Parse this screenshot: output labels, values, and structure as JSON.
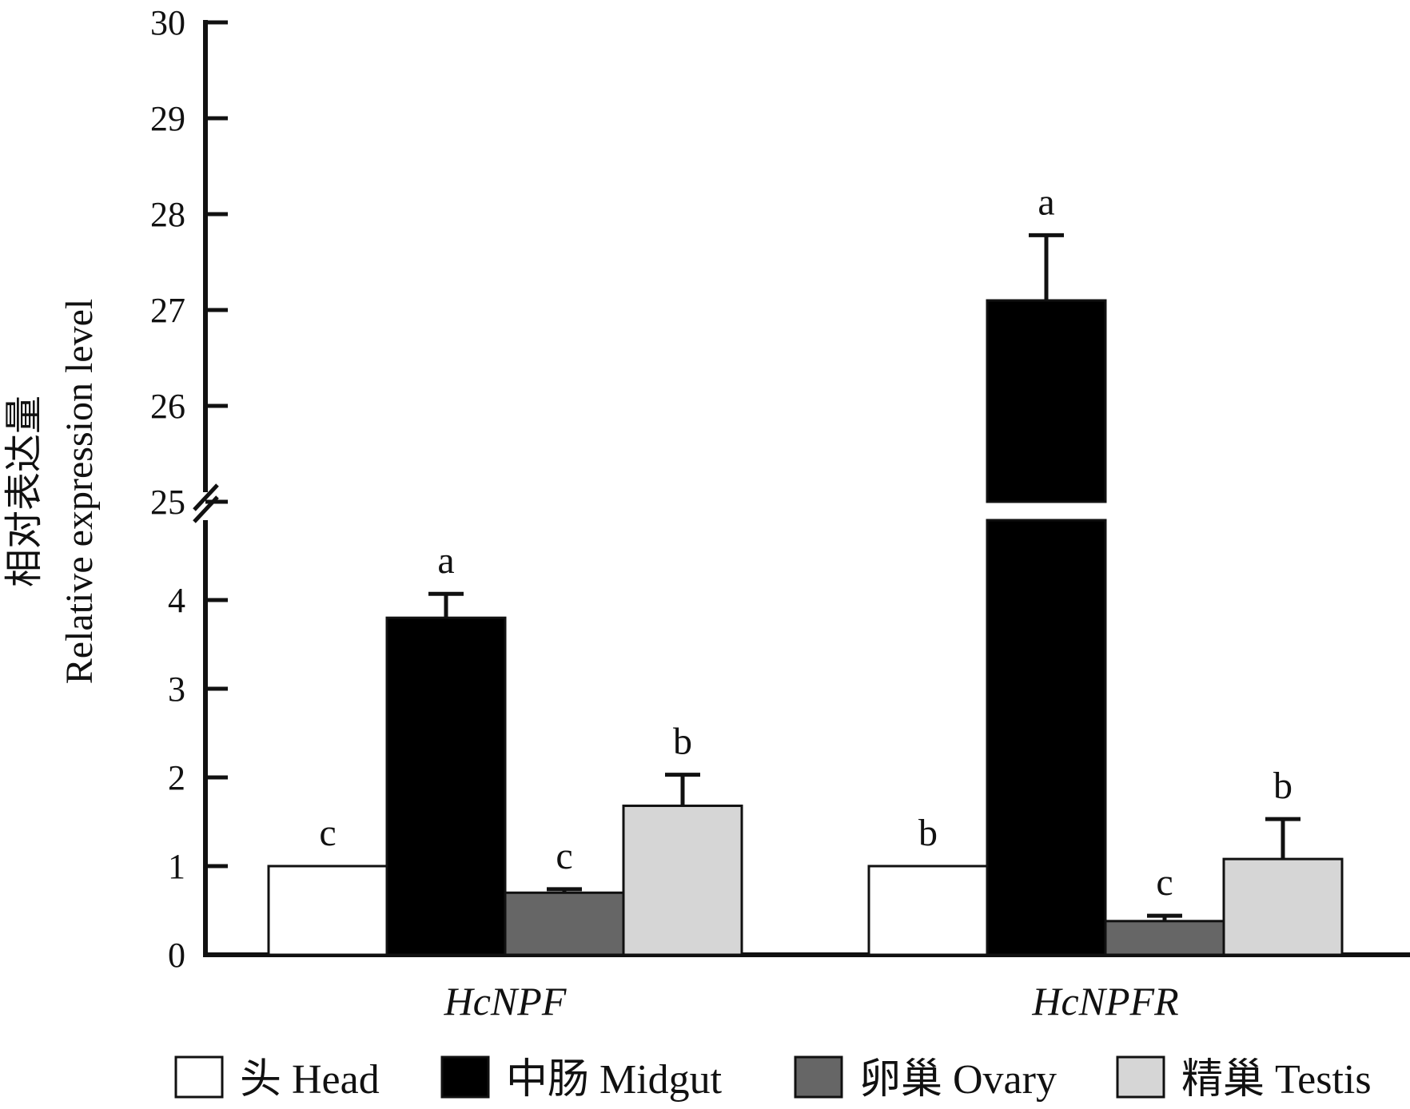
{
  "chart_data": {
    "type": "bar",
    "ylabel_cn": "相对表达量",
    "ylabel_en": "Relative expression level",
    "axis_break": {
      "lower": [
        0,
        5
      ],
      "upper": [
        25,
        30
      ]
    },
    "yticks_lower": [
      0,
      1,
      2,
      3,
      4
    ],
    "yticks_upper": [
      25,
      26,
      27,
      28,
      29,
      30
    ],
    "categories": [
      "HcNPF",
      "HcNPFR"
    ],
    "series": [
      {
        "name": "头 Head",
        "color": "#ffffff",
        "values": [
          1.0,
          1.0
        ],
        "errors": [
          0.0,
          0.0
        ],
        "labels": [
          "c",
          "b"
        ]
      },
      {
        "name": "中肠 Midgut",
        "color": "#000000",
        "values": [
          3.8,
          27.1
        ],
        "errors": [
          0.27,
          0.68
        ],
        "labels": [
          "a",
          "a"
        ]
      },
      {
        "name": "卵巢 Ovary",
        "color": "#666666",
        "values": [
          0.7,
          0.38
        ],
        "errors": [
          0.04,
          0.06
        ],
        "labels": [
          "c",
          "c"
        ]
      },
      {
        "name": "精巢 Testis",
        "color": "#d6d6d6",
        "values": [
          1.68,
          1.08
        ],
        "errors": [
          0.35,
          0.45
        ],
        "labels": [
          "b",
          "b"
        ]
      }
    ]
  }
}
